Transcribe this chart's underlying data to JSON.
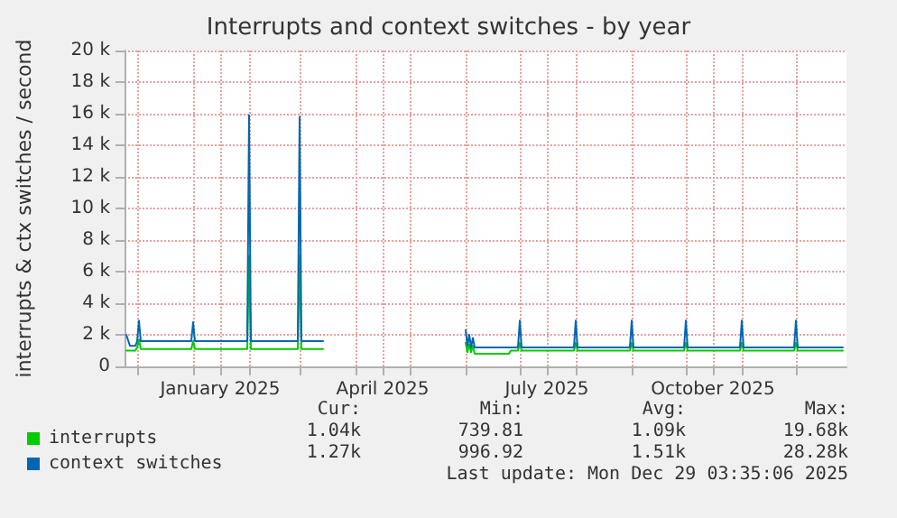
{
  "chart_data": {
    "type": "line",
    "title": "Interrupts and context switches - by year",
    "ylabel": "interrupts & ctx switches / second",
    "x": [
      "2024-11-25",
      "2024-11-27",
      "2024-11-30",
      "2024-12-01",
      "2024-12-02",
      "2024-12-03",
      "2024-12-31",
      "2025-01-01",
      "2025-01-02",
      "2025-01-31",
      "2025-02-01",
      "2025-02-02",
      "2025-02-28",
      "2025-03-01",
      "2025-03-02",
      "2025-03-14",
      "2025-04-20",
      "2025-06-01",
      "2025-06-02",
      "2025-06-03",
      "2025-06-04",
      "2025-06-05",
      "2025-06-06",
      "2025-06-25",
      "2025-06-26",
      "2025-06-30",
      "2025-07-01",
      "2025-07-02",
      "2025-07-31",
      "2025-08-01",
      "2025-08-02",
      "2025-08-31",
      "2025-09-01",
      "2025-09-02",
      "2025-09-30",
      "2025-10-01",
      "2025-10-02",
      "2025-10-31",
      "2025-11-01",
      "2025-11-02",
      "2025-11-30",
      "2025-12-01",
      "2025-12-02",
      "2025-12-27"
    ],
    "series": [
      {
        "name": "interrupts",
        "color": "#00cc00",
        "values": [
          1000,
          1000,
          1000,
          1200,
          1700,
          1100,
          1100,
          1600,
          1100,
          1100,
          7000,
          1100,
          1100,
          7000,
          1100,
          1100,
          null,
          1500,
          900,
          1400,
          900,
          1300,
          800,
          800,
          1000,
          1000,
          1500,
          1000,
          1000,
          1500,
          1000,
          1000,
          1500,
          1000,
          1000,
          1500,
          1000,
          1000,
          1500,
          1000,
          1000,
          1500,
          1000,
          1000
        ]
      },
      {
        "name": "context switches",
        "color": "#0066b3",
        "values": [
          2000,
          1300,
          1300,
          1600,
          2900,
          1600,
          1600,
          2800,
          1600,
          1600,
          15900,
          1600,
          1600,
          15800,
          1600,
          1600,
          null,
          2300,
          1300,
          2000,
          1200,
          1800,
          1200,
          1200,
          1200,
          1200,
          2900,
          1200,
          1200,
          2900,
          1200,
          1200,
          2900,
          1200,
          1200,
          2900,
          1200,
          1200,
          2900,
          1200,
          1200,
          2900,
          1200,
          1200
        ]
      }
    ],
    "xlim": [
      "2024-11-24",
      "2025-12-29"
    ],
    "xticks": [
      {
        "value": "2024-12-01",
        "label": null
      },
      {
        "value": "2025-01-01",
        "label": null
      },
      {
        "value": "2025-01-16",
        "label": "January 2025"
      },
      {
        "value": "2025-02-01",
        "label": null
      },
      {
        "value": "2025-03-01",
        "label": null
      },
      {
        "value": "2025-04-01",
        "label": null
      },
      {
        "value": "2025-04-16",
        "label": "April 2025"
      },
      {
        "value": "2025-05-01",
        "label": null
      },
      {
        "value": "2025-06-01",
        "label": null
      },
      {
        "value": "2025-07-01",
        "label": null
      },
      {
        "value": "2025-07-16",
        "label": "July 2025"
      },
      {
        "value": "2025-08-01",
        "label": null
      },
      {
        "value": "2025-09-01",
        "label": null
      },
      {
        "value": "2025-10-01",
        "label": null
      },
      {
        "value": "2025-10-16",
        "label": "October 2025"
      },
      {
        "value": "2025-11-01",
        "label": null
      },
      {
        "value": "2025-12-01",
        "label": null
      }
    ],
    "ylim": [
      0,
      20000
    ],
    "yticks": [
      0,
      {
        "value": 2000,
        "label": "2 k"
      },
      {
        "value": 4000,
        "label": "4 k"
      },
      {
        "value": 6000,
        "label": "6 k"
      },
      {
        "value": 8000,
        "label": "8 k"
      },
      {
        "value": 10000,
        "label": "10 k"
      },
      {
        "value": 12000,
        "label": "12 k"
      },
      {
        "value": 14000,
        "label": "14 k"
      },
      {
        "value": 16000,
        "label": "16 k"
      },
      {
        "value": 18000,
        "label": "18 k"
      },
      {
        "value": 20000,
        "label": "20 k"
      }
    ],
    "grid": true,
    "legend": "bottom left",
    "marker": "none",
    "line_style": "solid",
    "annotations": [
      "Cur:",
      "Min:",
      "Avg:",
      "Max:",
      "1.04k",
      "739.81",
      "1.09k",
      "19.68k",
      "1.27k",
      "996.92",
      "1.51k",
      "28.28k",
      "Last update: Mon Dec 29 03:35:06 2025"
    ]
  }
}
